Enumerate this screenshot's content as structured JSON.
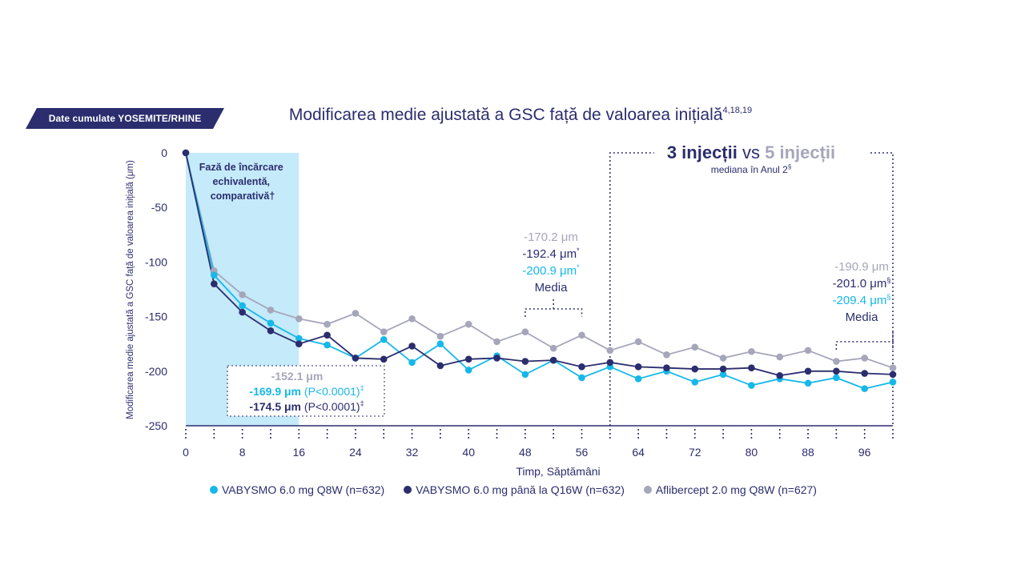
{
  "badge": "Date cumulate YOSEMITE/RHINE",
  "title": "Modificarea medie ajustată a GSC față de valoarea inițială",
  "title_sup": "4,18,19",
  "colors": {
    "navy": "#2b2d6e",
    "cyan": "#16b8e9",
    "grey": "#a6a6bb",
    "loading_band": "#c5eafa"
  },
  "annotations": {
    "loading_phase": [
      "Fază de încărcare",
      "echivalentă,",
      "comparativă†"
    ],
    "box1": {
      "line1": "-152.1 μm",
      "line2_value": "-169.9 μm",
      "line2_p": " (P<0.0001)",
      "line2_sup": "‡",
      "line3_value": "-174.5 μm",
      "line3_p": " (P<0.0001)",
      "line3_sup": "‡"
    },
    "mean48": {
      "line1": "-170.2 μm",
      "line2": "-192.4 μm",
      "line2_sup": "*",
      "line3": "-200.9 μm",
      "line3_sup": "*",
      "line4": "Media"
    },
    "mean96": {
      "line1": "-190.9 μm",
      "line2": "-201.0 μm",
      "line2_sup": "§",
      "line3": "-209.4 μm",
      "line3_sup": "§",
      "line4": "Media"
    },
    "injections": {
      "a": "3 injecții",
      "vs": "vs",
      "b": "5 injecții",
      "sub": "mediana în Anul 2",
      "sub_sup": "§"
    }
  },
  "chart_data": {
    "type": "line",
    "xlabel": "Timp, Săptămâni",
    "ylabel": "Modificarea medie ajustată a GSC față de valoarea inițială (μm)",
    "xlim": [
      0,
      100
    ],
    "ylim": [
      -250,
      0
    ],
    "x_ticks": [
      0,
      8,
      16,
      24,
      32,
      40,
      48,
      56,
      64,
      72,
      80,
      88,
      96
    ],
    "y_ticks": [
      0,
      -50,
      -100,
      -150,
      -200,
      -250
    ],
    "x": [
      0,
      4,
      8,
      12,
      16,
      20,
      24,
      28,
      32,
      36,
      40,
      44,
      48,
      52,
      56,
      60,
      64,
      68,
      72,
      76,
      80,
      84,
      88,
      92,
      96,
      100
    ],
    "series": [
      {
        "name": "VABYSMO 6.0 mg Q8W (n=632)",
        "color": "#16b8e9",
        "values": [
          0,
          -112,
          -140,
          -156,
          -170,
          -176,
          -188,
          -171,
          -192,
          -175,
          -199,
          -186,
          -203,
          -190,
          -206,
          -196,
          -207,
          -200,
          -210,
          -203,
          -213,
          -207,
          -211,
          -206,
          -216,
          -210
        ]
      },
      {
        "name": "VABYSMO 6.0 mg până la Q16W (n=632)",
        "color": "#2b2d6e",
        "values": [
          0,
          -120,
          -146,
          -163,
          -175,
          -167,
          -188,
          -189,
          -177,
          -195,
          -189,
          -188,
          -191,
          -190,
          -196,
          -192,
          -196,
          -197,
          -198,
          -198,
          -197,
          -204,
          -200,
          -200,
          -202,
          -203
        ]
      },
      {
        "name": "Aflibercept 2.0 mg Q8W (n=627)",
        "color": "#a6a6bb",
        "values": [
          0,
          -108,
          -130,
          -144,
          -152,
          -157,
          -147,
          -164,
          -152,
          -168,
          -157,
          -173,
          -164,
          -179,
          -167,
          -181,
          -173,
          -185,
          -178,
          -188,
          -182,
          -187,
          -181,
          -191,
          -188,
          -197
        ]
      }
    ],
    "loading_phase_x": [
      0,
      16
    ],
    "mean_brackets": [
      [
        48,
        56
      ],
      [
        92,
        100
      ]
    ]
  }
}
